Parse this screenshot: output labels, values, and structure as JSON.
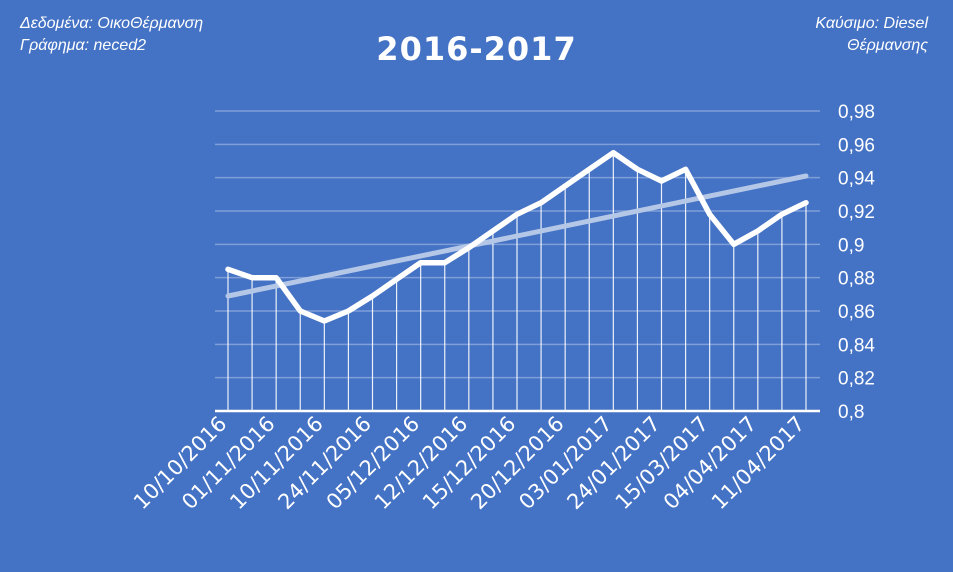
{
  "header": {
    "left_line1": "Δεδομένα: ΟικοΘέρμανση",
    "left_line2": "Γράφημα: neced2",
    "right_line1": "Καύσιμο: Diesel",
    "right_line2": "Θέρμανσης"
  },
  "chart_data": {
    "type": "line",
    "title": "2016-2017",
    "xlabel": "",
    "ylabel": "",
    "ylim": [
      0.8,
      0.98
    ],
    "ytick_labels": [
      "0,8",
      "0,82",
      "0,84",
      "0,86",
      "0,88",
      "0,9",
      "0,92",
      "0,94",
      "0,96",
      "0,98"
    ],
    "xtick_labels": [
      "10/10/2016",
      "01/11/2016",
      "10/11/2016",
      "24/11/2016",
      "05/12/2016",
      "12/12/2016",
      "15/12/2016",
      "20/12/2016",
      "03/01/2017",
      "24/01/2017",
      "15/03/2017",
      "04/04/2017",
      "11/04/2017"
    ],
    "grid": true,
    "legend": "none",
    "series": [
      {
        "values": [
          0.885,
          0.88,
          0.88,
          0.86,
          0.854,
          0.86,
          0.869,
          0.879,
          0.889,
          0.889,
          0.898,
          0.908,
          0.918,
          0.925,
          0.935,
          0.945,
          0.955,
          0.945,
          0.938,
          0.945,
          0.918,
          0.9,
          0.908,
          0.918,
          0.925
        ]
      }
    ],
    "trendline": {
      "type": "linear",
      "start": 0.869,
      "end": 0.941
    },
    "colors": {
      "background": "#4472C4",
      "line": "#FFFFFF",
      "trendline": "#B4C7E7",
      "grid": "#7F9FD8"
    }
  }
}
